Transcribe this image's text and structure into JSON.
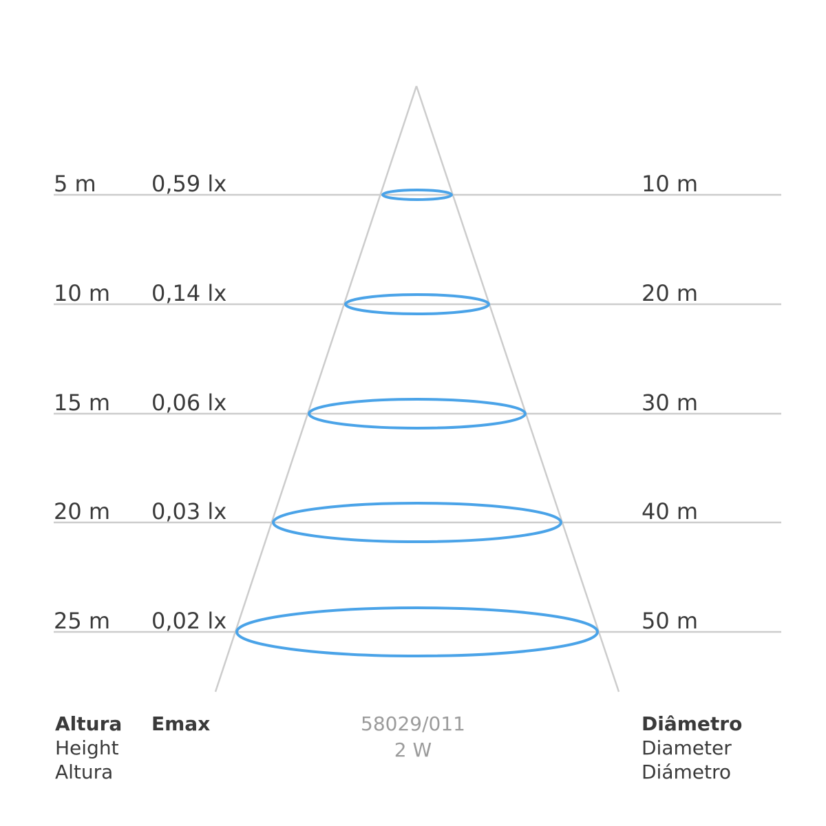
{
  "colors": {
    "beam_ellipse": "#4aa3e8",
    "cone_lines": "#cccccc",
    "grid_lines": "#cccccc",
    "text": "#3a3a3a",
    "product_text": "#9b9b9b"
  },
  "rows": [
    {
      "height": "5 m",
      "emax": "0,59 lx",
      "diameter": "10 m"
    },
    {
      "height": "10 m",
      "emax": "0,14 lx",
      "diameter": "20 m"
    },
    {
      "height": "15 m",
      "emax": "0,06 lx",
      "diameter": "30 m"
    },
    {
      "height": "20 m",
      "emax": "0,03 lx",
      "diameter": "40 m"
    },
    {
      "height": "25 m",
      "emax": "0,02 lx",
      "diameter": "50 m"
    }
  ],
  "footer": {
    "height_label": [
      "Altura",
      "Height",
      "Altura"
    ],
    "emax_label": "Emax",
    "product_code": "58029/011",
    "power": "2 W",
    "diameter_label": [
      "Diâmetro",
      "Diameter",
      "Diámetro"
    ]
  }
}
